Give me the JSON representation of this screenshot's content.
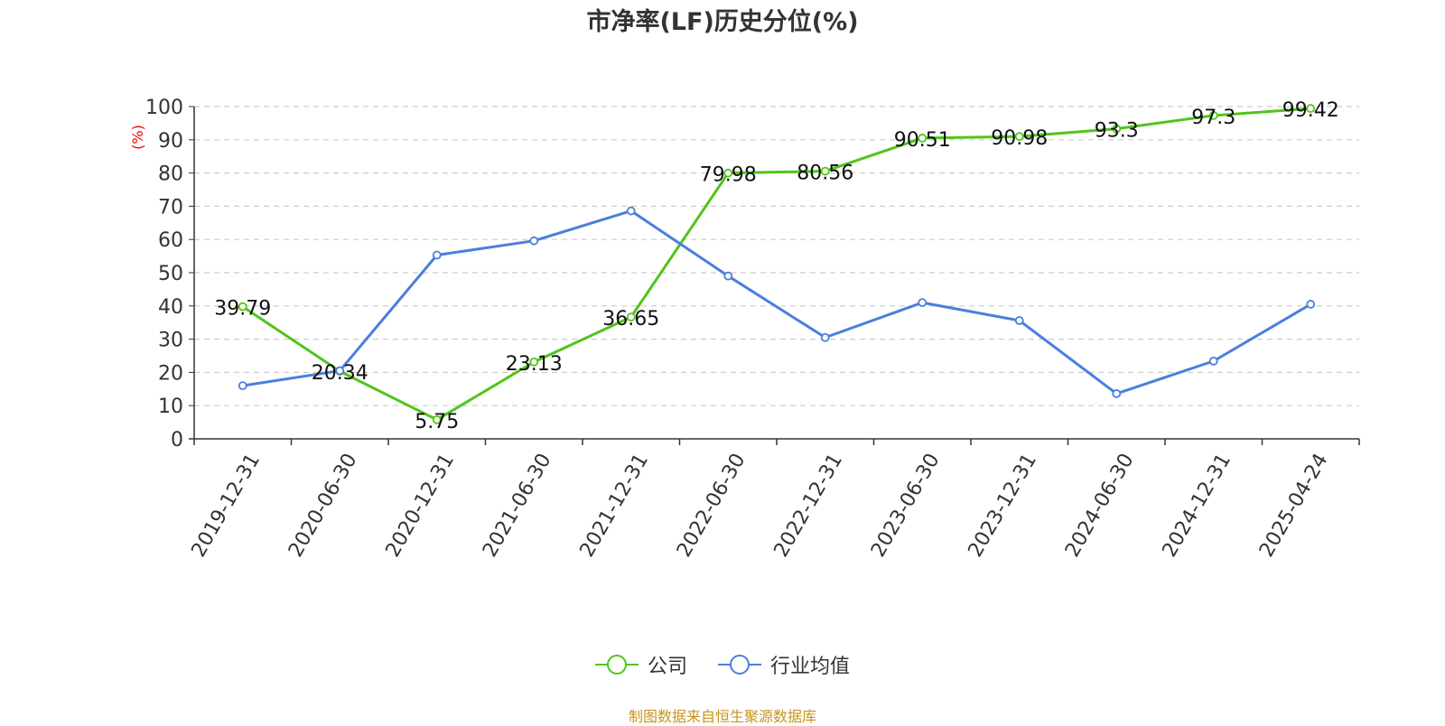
{
  "chart_data": {
    "type": "line",
    "title": "市净率(LF)历史分位(%)",
    "ylabel": "(%)",
    "ylim": [
      0,
      100
    ],
    "yticks": [
      0,
      10,
      20,
      30,
      40,
      50,
      60,
      70,
      80,
      90,
      100
    ],
    "grid": true,
    "legend_position": "bottom",
    "categories": [
      "2019-12-31",
      "2020-06-30",
      "2020-12-31",
      "2021-06-30",
      "2021-12-31",
      "2022-06-30",
      "2022-12-31",
      "2023-06-30",
      "2023-12-31",
      "2024-06-30",
      "2024-12-31",
      "2025-04-24"
    ],
    "series": [
      {
        "name": "公司",
        "color": "#52c41a",
        "values": [
          39.79,
          20.34,
          5.75,
          23.13,
          36.65,
          79.98,
          80.56,
          90.51,
          90.98,
          93.3,
          97.3,
          99.42
        ],
        "data_labels": [
          "39.79",
          "20.34",
          "5.75",
          "23.13",
          "36.65",
          "79.98",
          "80.56",
          "90.51",
          "90.98",
          "93.3",
          "97.3",
          "99.42"
        ]
      },
      {
        "name": "行业均值",
        "color": "#4a7fdc",
        "values": [
          16.0,
          20.5,
          55.3,
          59.6,
          68.6,
          49.0,
          30.5,
          41.0,
          35.6,
          13.6,
          23.4,
          40.5
        ]
      }
    ]
  },
  "footer": {
    "source": "制图数据来自恒生聚源数据库",
    "color": "#c8941e"
  },
  "colors": {
    "ylabel": "#ff0000",
    "axis": "#333333",
    "grid": "#cccccc"
  }
}
